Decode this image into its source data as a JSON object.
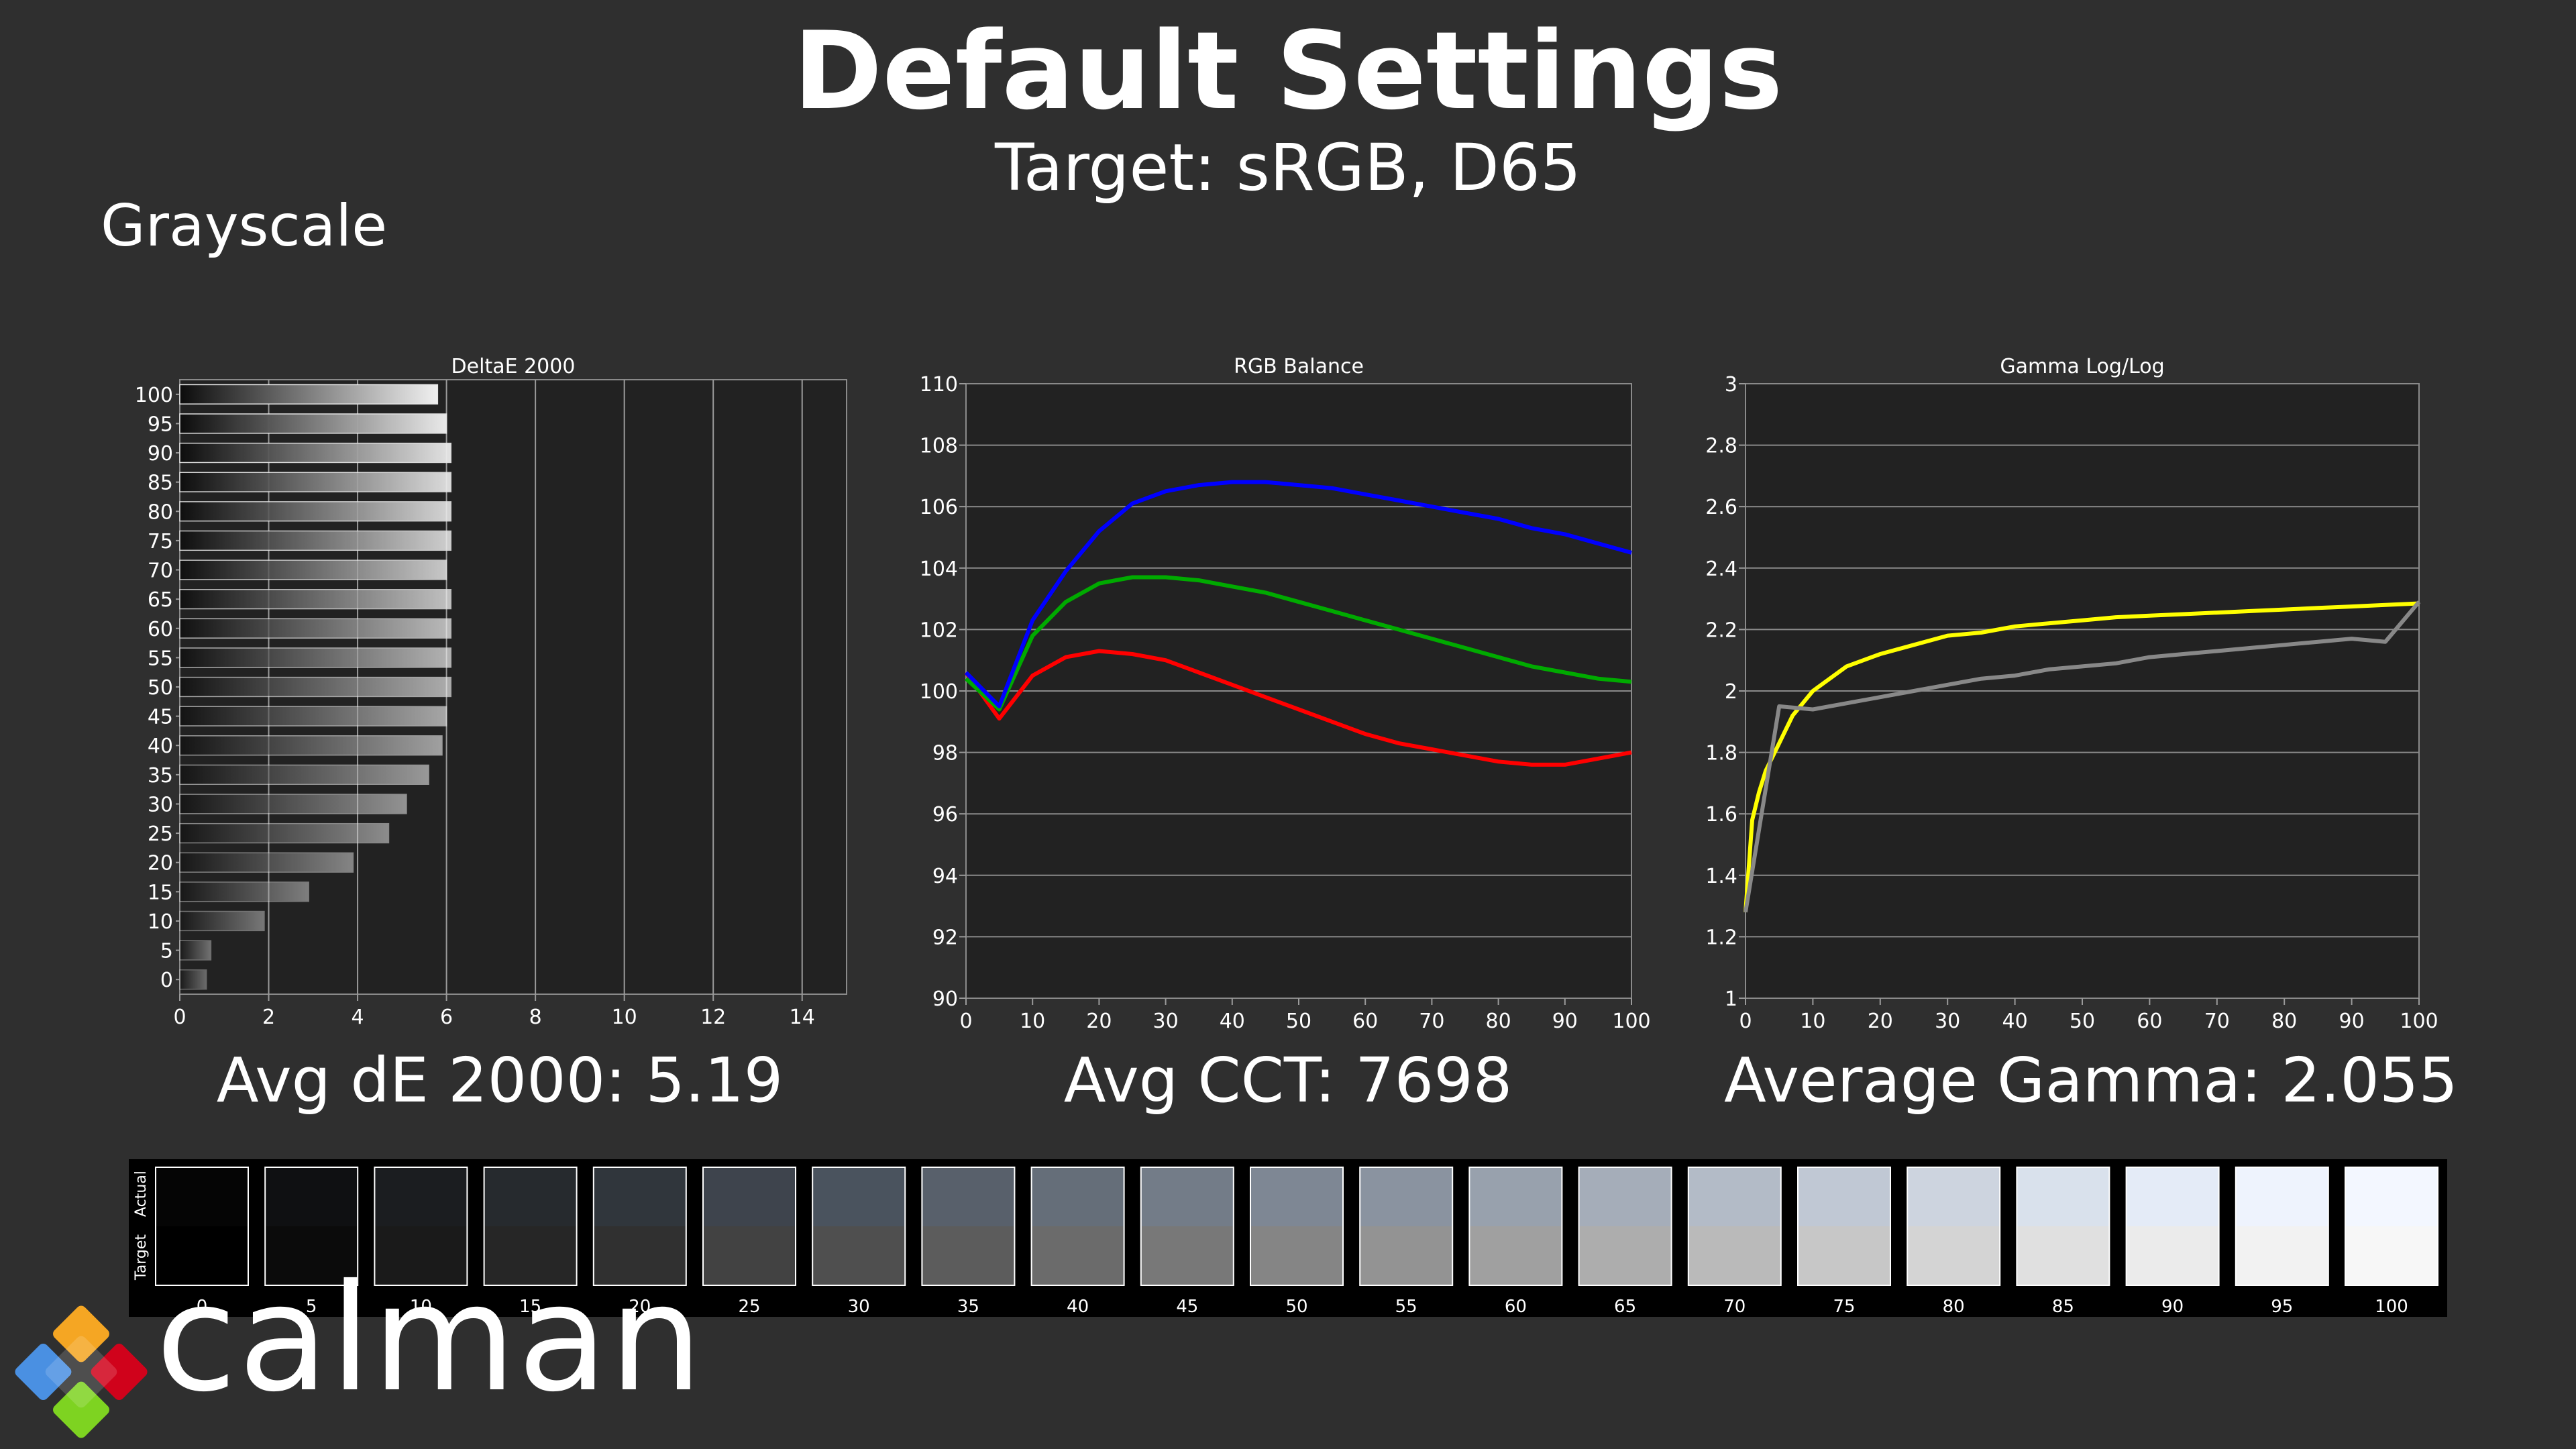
{
  "header": {
    "title": "Default Settings",
    "subtitle": "Target: sRGB, D65",
    "section": "Grayscale"
  },
  "summary": {
    "delta_e": "Avg dE 2000: 5.19",
    "cct": "Avg CCT: 7698",
    "gamma": "Average Gamma: 2.055"
  },
  "logo": {
    "text": "calman",
    "icon": "calman-diamond-logo"
  },
  "swatches": {
    "actual_label": "Actual",
    "target_label": "Target",
    "levels": [
      0,
      5,
      10,
      15,
      20,
      25,
      30,
      35,
      40,
      45,
      50,
      55,
      60,
      65,
      70,
      75,
      80,
      85,
      90,
      95,
      100
    ],
    "actual_colors": [
      "#050505",
      "#0f1012",
      "#1b1d20",
      "#262a2e",
      "#30363c",
      "#3e444d",
      "#4a535e",
      "#58606b",
      "#656e79",
      "#737c88",
      "#7e8794",
      "#8a93a0",
      "#98a1ad",
      "#a5adb9",
      "#b3bbc7",
      "#c0c8d4",
      "#cdd4df",
      "#d9e1ec",
      "#e4ebf7",
      "#eef3fd",
      "#f3f7ff"
    ],
    "target_colors": [
      "#000000",
      "#0b0b0b",
      "#1a1a1a",
      "#262626",
      "#303030",
      "#424242",
      "#4f4f4f",
      "#5c5c5c",
      "#6b6b6b",
      "#787878",
      "#858585",
      "#939393",
      "#a0a0a0",
      "#adadad",
      "#bababa",
      "#c7c7c7",
      "#d4d4d4",
      "#e0e0e0",
      "#ebebeb",
      "#f2f2f2",
      "#f7f7f7"
    ]
  },
  "chart_data": [
    {
      "type": "bar",
      "orientation": "horizontal",
      "title": "DeltaE 2000",
      "categories": [
        "100",
        "95",
        "90",
        "85",
        "80",
        "75",
        "70",
        "65",
        "60",
        "55",
        "50",
        "45",
        "40",
        "35",
        "30",
        "25",
        "20",
        "15",
        "10",
        "5",
        "0"
      ],
      "values": [
        5.8,
        6.0,
        6.1,
        6.1,
        6.1,
        6.1,
        6.0,
        6.1,
        6.1,
        6.1,
        6.1,
        6.0,
        5.9,
        5.6,
        5.1,
        4.7,
        3.9,
        2.9,
        1.9,
        0.7,
        0.6
      ],
      "xlim": [
        0,
        15
      ],
      "xticks": [
        0,
        2,
        4,
        6,
        8,
        10,
        12,
        14
      ],
      "grid": true
    },
    {
      "type": "line",
      "title": "RGB Balance",
      "x": [
        0,
        5,
        10,
        15,
        20,
        25,
        30,
        35,
        40,
        45,
        50,
        55,
        60,
        65,
        70,
        75,
        80,
        85,
        90,
        95,
        100
      ],
      "series": [
        {
          "color": "#ff0000",
          "values": [
            100.6,
            99.1,
            100.5,
            101.1,
            101.3,
            101.2,
            101.0,
            100.6,
            100.2,
            99.8,
            99.4,
            99.0,
            98.6,
            98.3,
            98.1,
            97.9,
            97.7,
            97.6,
            97.6,
            97.8,
            98.0
          ]
        },
        {
          "color": "#00aa00",
          "values": [
            100.4,
            99.4,
            101.8,
            102.9,
            103.5,
            103.7,
            103.7,
            103.6,
            103.4,
            103.2,
            102.9,
            102.6,
            102.3,
            102.0,
            101.7,
            101.4,
            101.1,
            100.8,
            100.6,
            100.4,
            100.3
          ]
        },
        {
          "color": "#0000ff",
          "values": [
            100.6,
            99.5,
            102.3,
            103.9,
            105.2,
            106.1,
            106.5,
            106.7,
            106.8,
            106.8,
            106.7,
            106.6,
            106.4,
            106.2,
            106.0,
            105.8,
            105.6,
            105.3,
            105.1,
            104.8,
            104.5
          ]
        }
      ],
      "ylim": [
        90,
        110
      ],
      "yticks": [
        90,
        92,
        94,
        96,
        98,
        100,
        102,
        104,
        106,
        108,
        110
      ],
      "xticks": [
        0,
        10,
        20,
        30,
        40,
        50,
        60,
        70,
        80,
        90,
        100
      ],
      "grid": true
    },
    {
      "type": "line",
      "title": "Gamma Log/Log",
      "x": [
        0,
        1,
        2,
        3,
        5,
        7,
        10,
        15,
        20,
        25,
        30,
        35,
        40,
        45,
        50,
        55,
        60,
        65,
        70,
        75,
        80,
        85,
        90,
        95,
        100
      ],
      "series": [
        {
          "color": "#ffff00",
          "values": [
            1.28,
            1.58,
            1.67,
            1.74,
            1.83,
            1.92,
            2.0,
            2.08,
            2.12,
            2.15,
            2.18,
            2.19,
            2.21,
            2.22,
            2.23,
            2.24,
            2.245,
            2.25,
            2.255,
            2.26,
            2.265,
            2.27,
            2.275,
            2.28,
            2.285
          ]
        },
        {
          "color": "#888888",
          "x": [
            0,
            5,
            10,
            15,
            20,
            25,
            30,
            35,
            40,
            45,
            50,
            55,
            60,
            65,
            70,
            75,
            80,
            85,
            90,
            95,
            100
          ],
          "values": [
            1.28,
            1.95,
            1.94,
            1.96,
            1.98,
            2.0,
            2.02,
            2.04,
            2.05,
            2.07,
            2.08,
            2.09,
            2.11,
            2.12,
            2.13,
            2.14,
            2.15,
            2.16,
            2.17,
            2.16,
            2.29
          ]
        }
      ],
      "ylim": [
        1,
        3
      ],
      "yticks": [
        1,
        1.2,
        1.4,
        1.6,
        1.8,
        2,
        2.2,
        2.4,
        2.6,
        2.8,
        3
      ],
      "xticks": [
        0,
        10,
        20,
        30,
        40,
        50,
        60,
        70,
        80,
        90,
        100
      ],
      "grid": true
    }
  ]
}
